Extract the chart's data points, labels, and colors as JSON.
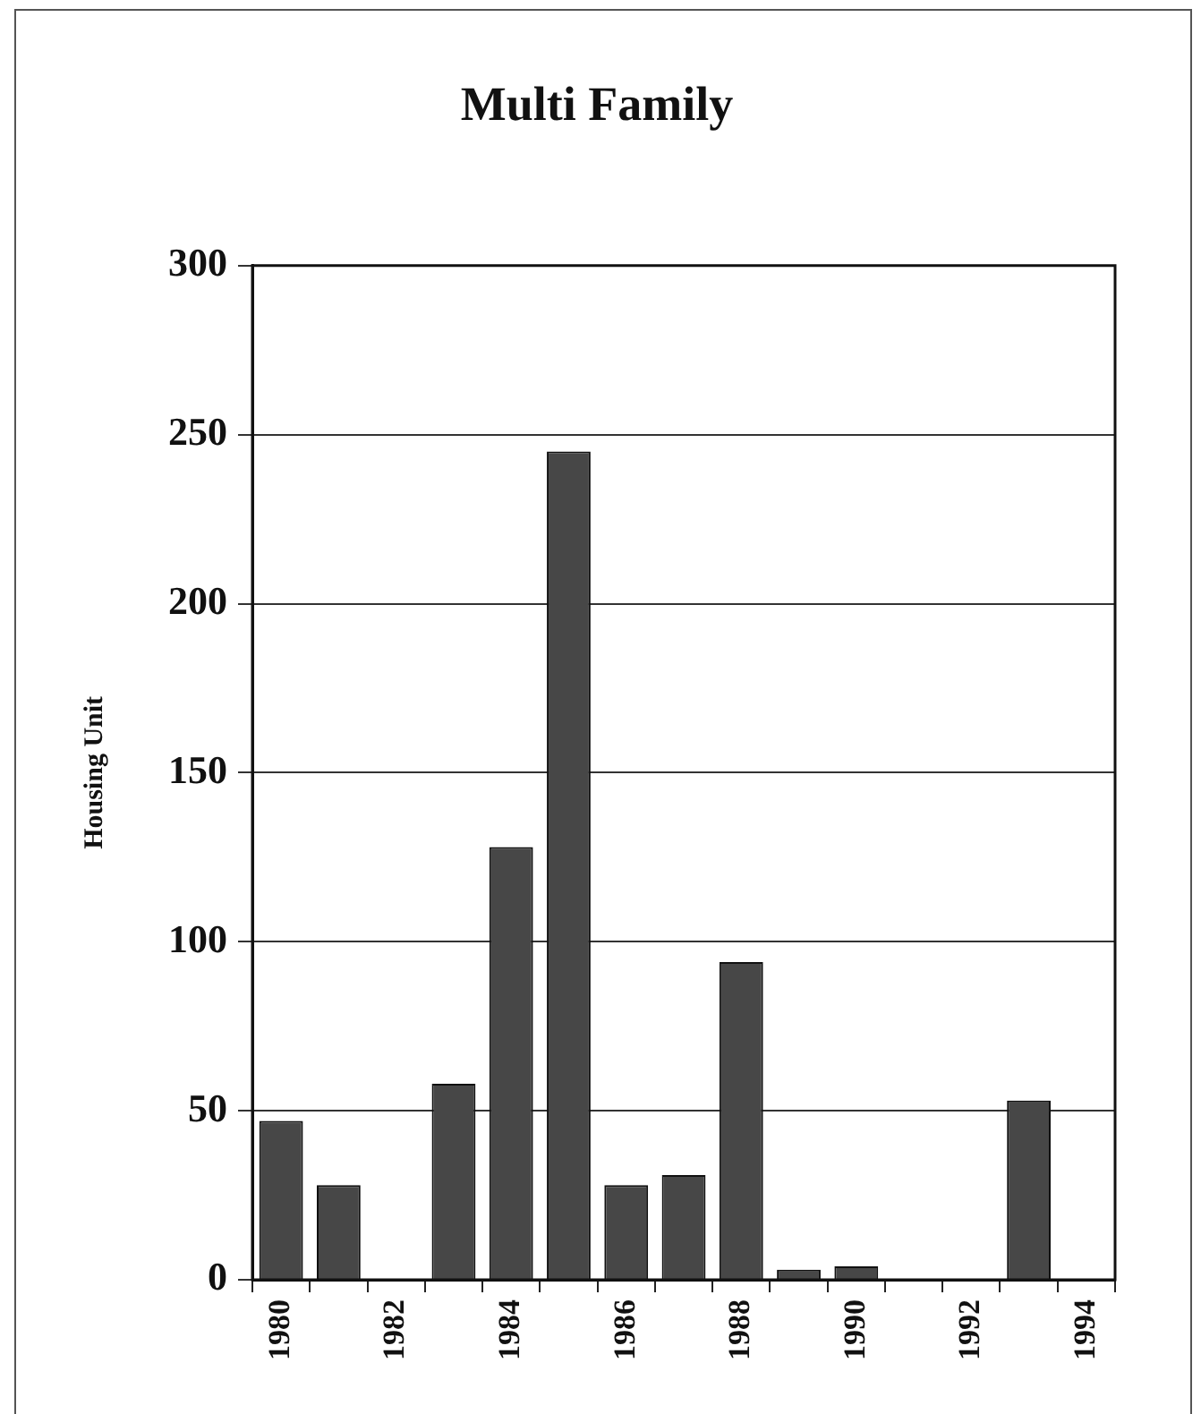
{
  "chart_data": {
    "type": "bar",
    "title": "Multi Family",
    "ylabel": "Housing Unit",
    "categories": [
      "1980",
      null,
      "1982",
      null,
      "1984",
      null,
      "1986",
      null,
      "1988",
      null,
      "1990",
      null,
      "1992",
      null,
      "1994"
    ],
    "values": [
      47,
      28,
      0,
      58,
      128,
      245,
      28,
      31,
      94,
      3,
      4,
      0,
      0,
      53,
      0
    ],
    "color": "#474747",
    "ylim": [
      0,
      300
    ],
    "yticks": [
      0,
      50,
      100,
      150,
      200,
      250,
      300
    ],
    "grid": "y"
  }
}
